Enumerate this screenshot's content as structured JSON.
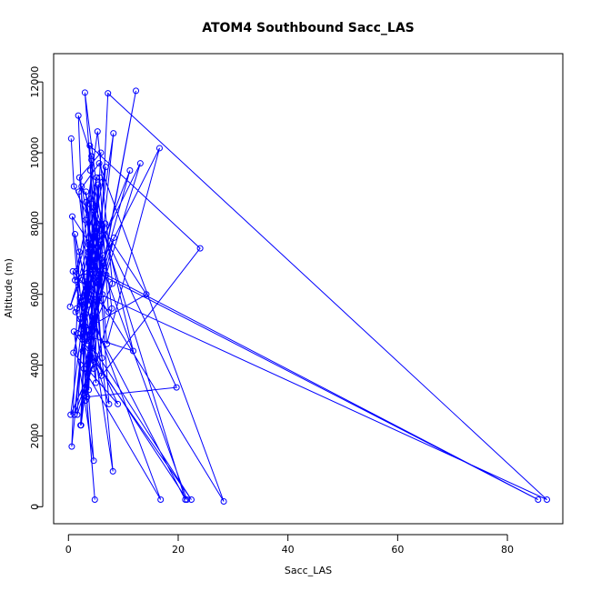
{
  "chart_data": {
    "type": "line",
    "title": "ATOM4 Southbound Sacc_LAS",
    "xlabel": "Sacc_LAS",
    "ylabel": "Altitude (m)",
    "xlim": [
      -2.7,
      90.1
    ],
    "ylim": [
      -480,
      12800
    ],
    "xticks": [
      0,
      20,
      40,
      60,
      80
    ],
    "yticks": [
      0,
      2000,
      4000,
      6000,
      8000,
      10000,
      12000
    ],
    "grid": false,
    "legend": "none",
    "series_color": "#0000ff",
    "marker": "open-circle",
    "series": [
      {
        "x": [
          0.5,
          1.0,
          5.3,
          2.8,
          7.4,
          4.2,
          1.8,
          3.4,
          5.7,
          2.1,
          4.8,
          0.7,
          6.5,
          3.1,
          8.2,
          2.6,
          5.1,
          1.4,
          4.6,
          7.9,
          3.0,
          5.5,
          2.3,
          4.1,
          6.1,
          1.2,
          3.7,
          5.9,
          2.0,
          4.4,
          87.2,
          7.2,
          4.9,
          1.6,
          3.6,
          5.2,
          12.3,
          4.0,
          6.8,
          2.5,
          5.0,
          3.9,
          24.0,
          6.0,
          3.2,
          14.2,
          2.9,
          5.4,
          1.1,
          4.7,
          0.4,
          4.3,
          3.3,
          28.3,
          5.6,
          1.9,
          4.5,
          2.7,
          6.4,
          3.5,
          5.8,
          2.2,
          4.2,
          7.0,
          16.6,
          3.8,
          1.3,
          9.0,
          0.9,
          6.7,
          3.4,
          19.7,
          2.4,
          5.6,
          11.2,
          1.5,
          4.8,
          13.1,
          2.6,
          8.0,
          5.3,
          3.1,
          21.6,
          1.7,
          5.0,
          4.1,
          85.6,
          6.9,
          2.8,
          16.8,
          4.4,
          3.2,
          8.1,
          2.0,
          0.6,
          5.7,
          7.3,
          0.8,
          3.6,
          22.4,
          1.0,
          4.6,
          2.3,
          5.9,
          0.3,
          3.7,
          6.2,
          4.0,
          11.8,
          3.9,
          8.3,
          5.5,
          2.1,
          21.3,
          4.9,
          1.2,
          6.3,
          3.0
        ],
        "y": [
          10400,
          9050,
          7600,
          5100,
          2900,
          9900,
          11050,
          4600,
          7400,
          5300,
          200,
          8200,
          6800,
          3000,
          10550,
          4800,
          9300,
          6650,
          3900,
          5600,
          11700,
          6400,
          2300,
          8700,
          4200,
          7700,
          3300,
          10000,
          9300,
          6100,
          200,
          11680,
          4200,
          2600,
          7200,
          5800,
          11750,
          4900,
          9600,
          6400,
          3500,
          10200,
          7300,
          3700,
          8600,
          6000,
          5000,
          9100,
          2600,
          4100,
          2600,
          7300,
          6500,
          150,
          9700,
          8900,
          5200,
          3200,
          6900,
          5700,
          7800,
          2300,
          9800,
          4600,
          10130,
          6200,
          5500,
          2900,
          4350,
          8000,
          3100,
          3370,
          9050,
          6400,
          9500,
          5600,
          7100,
          9700,
          4400,
          6300,
          10600,
          8100,
          200,
          4900,
          7900,
          6700,
          200,
          6550,
          3900,
          200,
          5400,
          8900,
          1000,
          7200,
          1700,
          9300,
          5500,
          6650,
          4700,
          200,
          4950,
          1300,
          5800,
          8000,
          5650,
          7400,
          6000,
          9500,
          4400,
          4800,
          7600,
          6300,
          5900,
          200,
          8500,
          6400,
          7100,
          5100
        ]
      }
    ]
  }
}
